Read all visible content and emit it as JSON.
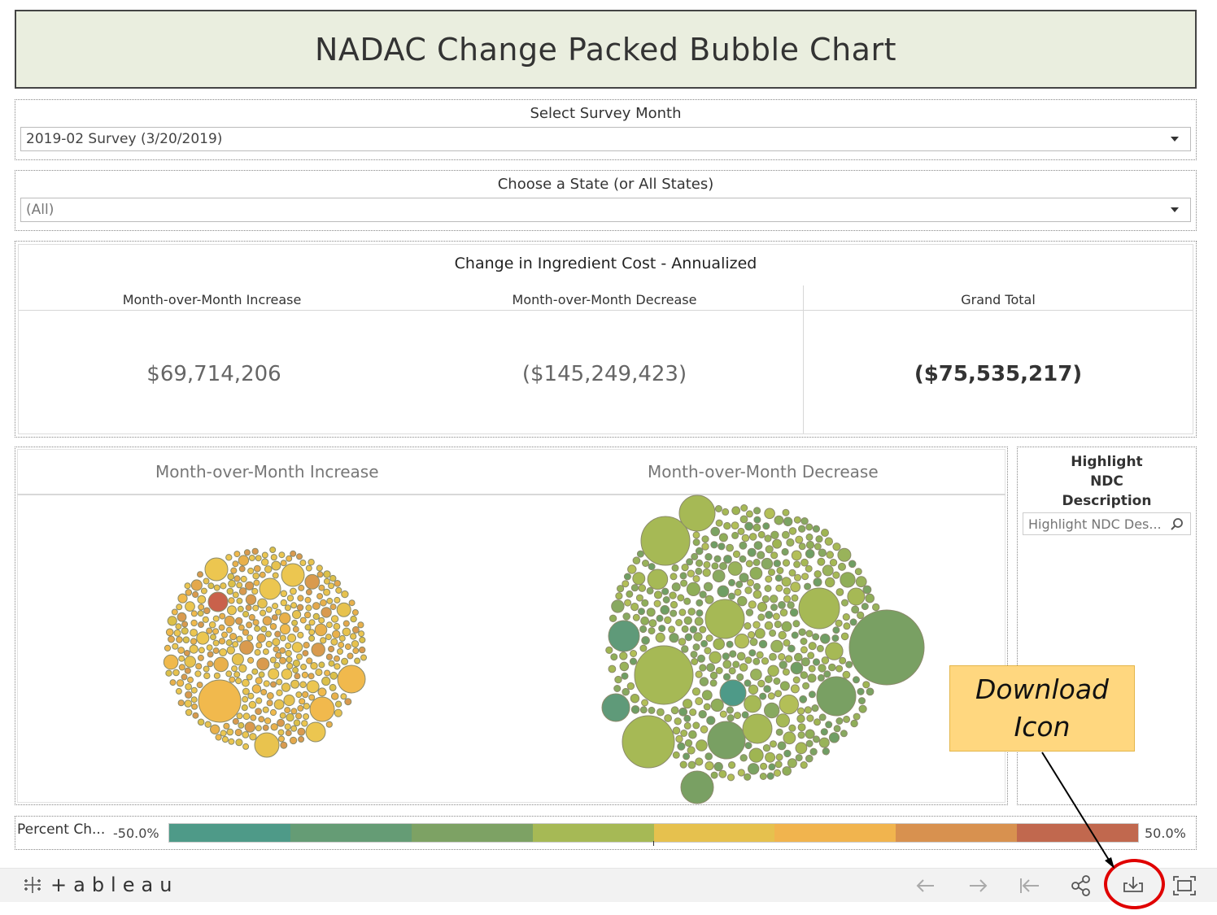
{
  "dashboard": {
    "title": "NADAC Change Packed Bubble Chart"
  },
  "filters": {
    "survey_month": {
      "label": "Select Survey Month",
      "value": "2019-02 Survey (3/20/2019)"
    },
    "state": {
      "label": "Choose a State (or All States)",
      "value": "(All)"
    }
  },
  "kpi": {
    "title": "Change in Ingredient Cost - Annualized",
    "columns": [
      {
        "header": "Month-over-Month Increase",
        "value": "$69,714,206"
      },
      {
        "header": "Month-over-Month Decrease",
        "value": "($145,249,423)"
      },
      {
        "header": "Grand Total",
        "value": "($75,535,217)"
      }
    ]
  },
  "bubbles": {
    "increase_label": "Month-over-Month Increase",
    "decrease_label": "Month-over-Month Decrease"
  },
  "highlight": {
    "label_lines": [
      "Highlight",
      "NDC",
      "Description"
    ],
    "placeholder": "Highlight NDC Des..."
  },
  "callout": {
    "line1": "Download",
    "line2": "Icon"
  },
  "legend": {
    "title": "Percent Ch...",
    "min_label": "-50.0%",
    "max_label": "50.0%",
    "colors": [
      "#4e9a88",
      "#659c75",
      "#7da264",
      "#a6b955",
      "#e6c14e",
      "#f1b44e",
      "#d8914f",
      "#c1684e"
    ]
  },
  "toolbar": {
    "logo_text": "+ableau",
    "icons": [
      "undo-icon",
      "redo-icon",
      "revert-icon",
      "share-icon",
      "download-icon",
      "fullscreen-icon"
    ]
  }
}
